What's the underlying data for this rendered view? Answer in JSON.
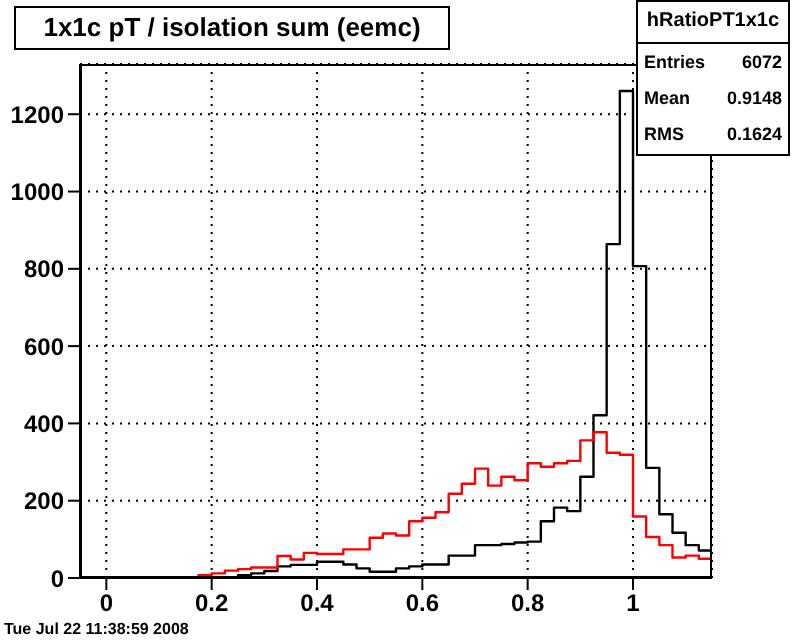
{
  "chart_data": {
    "type": "histogram",
    "title": "1x1c pT / isolation sum (eemc)",
    "bins": [
      -0.05,
      -0.025,
      0,
      0.025,
      0.05,
      0.075,
      0.1,
      0.125,
      0.15,
      0.175,
      0.2,
      0.225,
      0.25,
      0.275,
      0.3,
      0.325,
      0.35,
      0.375,
      0.4,
      0.425,
      0.45,
      0.475,
      0.5,
      0.525,
      0.55,
      0.575,
      0.6,
      0.625,
      0.65,
      0.675,
      0.7,
      0.725,
      0.75,
      0.775,
      0.8,
      0.825,
      0.85,
      0.875,
      0.9,
      0.925,
      0.95,
      0.975,
      1,
      1.025,
      1.05,
      1.075,
      1.1,
      1.125,
      1.15
    ],
    "series": [
      {
        "color": "#000000",
        "values": [
          0,
          0,
          0,
          0,
          0,
          0,
          0,
          0,
          0,
          0,
          0,
          0,
          7,
          12,
          18,
          30,
          34,
          34,
          42,
          42,
          35,
          25,
          16,
          16,
          25,
          30,
          35,
          35,
          58,
          58,
          85,
          85,
          88,
          92,
          94,
          147,
          182,
          173,
          262,
          421,
          864,
          1260,
          807,
          285,
          165,
          117,
          85,
          71
        ]
      },
      {
        "color": "#ff0000",
        "values": [
          0,
          0,
          0,
          0,
          0,
          0,
          0,
          0,
          0,
          7,
          12,
          19,
          23,
          27,
          27,
          57,
          48,
          65,
          62,
          62,
          74,
          74,
          104,
          115,
          110,
          147,
          156,
          170,
          218,
          244,
          283,
          239,
          262,
          253,
          297,
          288,
          297,
          303,
          356,
          377,
          324,
          319,
          159,
          106,
          85,
          53,
          58,
          50
        ]
      }
    ],
    "xlim": [
      -0.05,
      1.15
    ],
    "xticks": [
      0,
      0.2,
      0.4,
      0.6,
      0.8,
      1
    ],
    "ylim": [
      0,
      1330
    ],
    "yticks": [
      0,
      200,
      400,
      600,
      800,
      1000,
      1200
    ],
    "grid": true,
    "annotations": [
      "hRatioPT1x1c",
      "Entries 6072",
      "Mean 0.9148",
      "RMS 0.1624",
      "Tue Jul 22 11:38:59 2008"
    ]
  }
}
